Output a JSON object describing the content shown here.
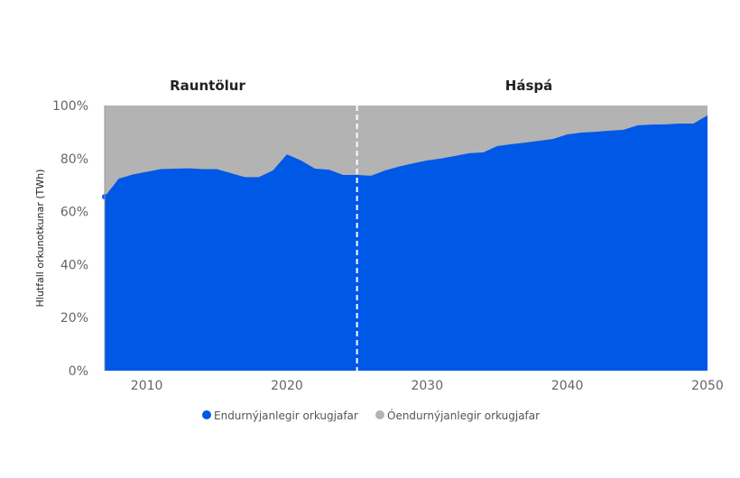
{
  "chart_data": {
    "type": "area",
    "stacked": "percent",
    "ylabel": "Hlutfall orkunotkunar (TWh)",
    "section_labels": [
      "Rauntölur",
      "Háspá"
    ],
    "divider_x": 2025,
    "xlim": [
      2007,
      2050
    ],
    "ylim": [
      0,
      100
    ],
    "x_ticks": [
      2010,
      2020,
      2030,
      2040,
      2050
    ],
    "y_ticks": [
      "0%",
      "20%",
      "40%",
      "60%",
      "80%",
      "100%"
    ],
    "legend_position": "bottom",
    "x": [
      2007,
      2008,
      2009,
      2010,
      2011,
      2012,
      2013,
      2014,
      2015,
      2016,
      2017,
      2018,
      2019,
      2020,
      2021,
      2022,
      2023,
      2024,
      2025,
      2026,
      2027,
      2028,
      2029,
      2030,
      2031,
      2032,
      2033,
      2034,
      2035,
      2036,
      2037,
      2038,
      2039,
      2040,
      2041,
      2042,
      2043,
      2044,
      2045,
      2046,
      2047,
      2048,
      2049,
      2050
    ],
    "series": [
      {
        "name": "Endurnýjanlegir orkugjafar",
        "color": "#0058e6",
        "values": [
          65.6,
          72.4,
          74,
          75,
          76,
          76.2,
          76.3,
          76,
          76,
          74.5,
          73,
          73,
          75.5,
          81.6,
          79.3,
          76.2,
          75.8,
          73.8,
          73.8,
          73.5,
          75.5,
          77,
          78.2,
          79.3,
          80,
          81,
          82,
          82.3,
          84.7,
          85.4,
          86,
          86.7,
          87.4,
          89.1,
          89.8,
          90.1,
          90.5,
          90.8,
          92.5,
          92.8,
          92.9,
          93.2,
          93.2,
          96.3
        ]
      },
      {
        "name": "Óendurnýjanlegir orkugjafar",
        "color": "#b3b3b3"
      }
    ]
  }
}
